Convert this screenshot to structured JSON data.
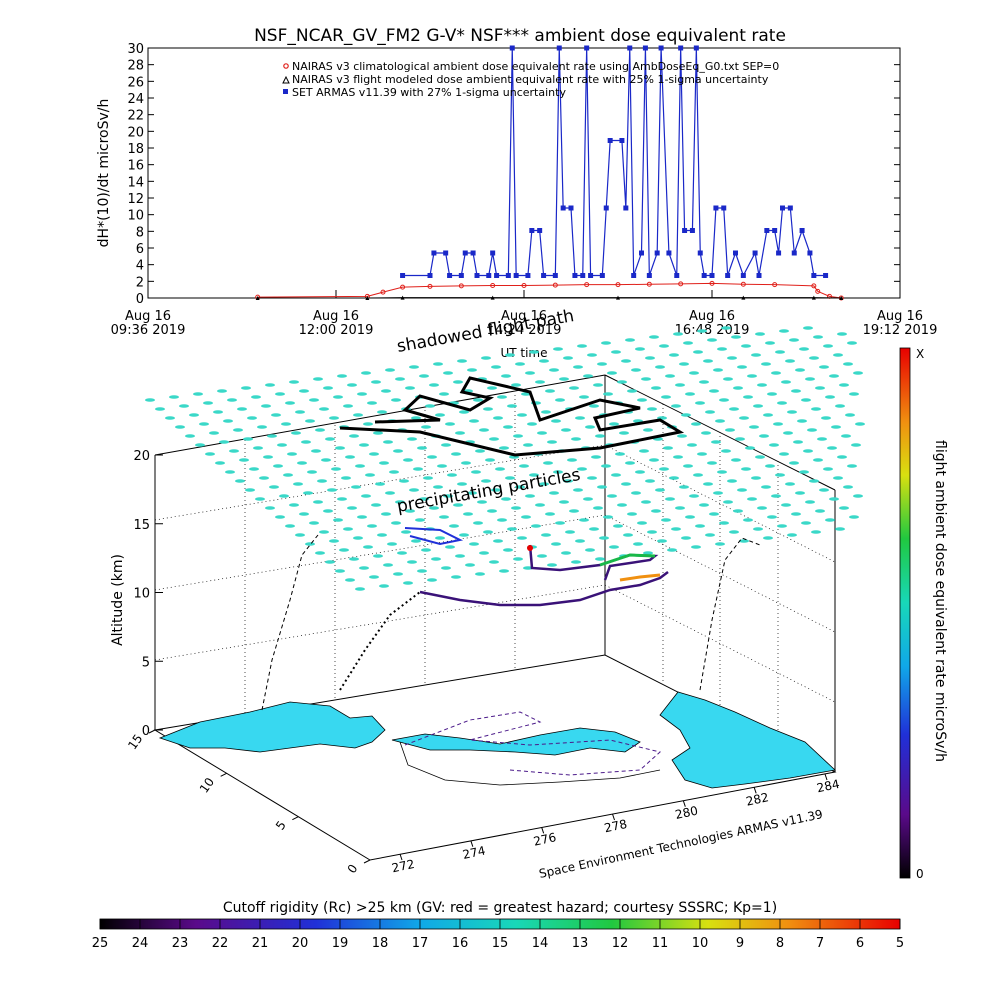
{
  "chart_data": [
    {
      "type": "line",
      "title": "NSF_NCAR_GV_FM2 G-V* NSF*** ambient dose equivalent rate",
      "ylabel": "dH*(10)/dt microSv/h",
      "xlabel": "UT time",
      "ylim": [
        0,
        30
      ],
      "yticks": [
        0,
        2,
        4,
        6,
        8,
        10,
        12,
        14,
        16,
        18,
        20,
        22,
        24,
        26,
        28,
        30
      ],
      "x_tick_labels": [
        {
          "l1": "Aug 16",
          "l2": "09:36 2019"
        },
        {
          "l1": "Aug 16",
          "l2": "12:00 2019"
        },
        {
          "l1": "Aug 16",
          "l2": "14:24 2019"
        },
        {
          "l1": "Aug 16",
          "l2": "16:48 2019"
        },
        {
          "l1": "Aug 16",
          "l2": "19:12 2019"
        }
      ],
      "x_hours_range": [
        9.6,
        19.2
      ],
      "legend_position": "top-right",
      "series": [
        {
          "name": "NAIRAS v3 climatological ambient dose equivalent rate using AmbDoseEq_G0.txt SEP=0",
          "color": "#e0201a",
          "marker": "circle",
          "points": [
            [
              11.0,
              0.1
            ],
            [
              12.4,
              0.2
            ],
            [
              12.6,
              0.7
            ],
            [
              12.85,
              1.3
            ],
            [
              13.2,
              1.4
            ],
            [
              13.6,
              1.45
            ],
            [
              14.0,
              1.5
            ],
            [
              14.4,
              1.5
            ],
            [
              14.8,
              1.55
            ],
            [
              15.2,
              1.6
            ],
            [
              15.6,
              1.6
            ],
            [
              16.0,
              1.65
            ],
            [
              16.4,
              1.7
            ],
            [
              16.8,
              1.75
            ],
            [
              17.2,
              1.65
            ],
            [
              17.6,
              1.6
            ],
            [
              18.1,
              1.45
            ],
            [
              18.15,
              0.8
            ],
            [
              18.3,
              0.2
            ],
            [
              18.45,
              0.0
            ]
          ]
        },
        {
          "name": "NAIRAS v3 flight modeled dose ambient equivalent rate with 25% 1-sigma uncertainty",
          "color": "#000000",
          "marker": "triangle",
          "points": [
            [
              11.0,
              0.0
            ],
            [
              12.4,
              0.0
            ],
            [
              12.85,
              0.05
            ],
            [
              14.0,
              0.05
            ],
            [
              15.6,
              0.05
            ],
            [
              17.2,
              0.05
            ],
            [
              18.1,
              0.05
            ],
            [
              18.45,
              0.0
            ]
          ]
        },
        {
          "name": "SET ARMAS v11.39 with 27% 1-sigma uncertainty",
          "color": "#1a28c8",
          "marker": "square",
          "points": [
            [
              12.85,
              2.7
            ],
            [
              13.2,
              2.7
            ],
            [
              13.25,
              5.4
            ],
            [
              13.4,
              5.4
            ],
            [
              13.45,
              2.7
            ],
            [
              13.6,
              2.7
            ],
            [
              13.65,
              5.4
            ],
            [
              13.75,
              5.4
            ],
            [
              13.8,
              2.7
            ],
            [
              13.95,
              2.7
            ],
            [
              14.0,
              5.4
            ],
            [
              14.05,
              2.7
            ],
            [
              14.2,
              2.7
            ],
            [
              14.25,
              30
            ],
            [
              14.3,
              2.7
            ],
            [
              14.45,
              2.7
            ],
            [
              14.5,
              8.1
            ],
            [
              14.6,
              8.1
            ],
            [
              14.65,
              2.7
            ],
            [
              14.8,
              2.7
            ],
            [
              14.85,
              30
            ],
            [
              14.9,
              10.8
            ],
            [
              15.0,
              10.8
            ],
            [
              15.05,
              2.7
            ],
            [
              15.15,
              2.7
            ],
            [
              15.2,
              30
            ],
            [
              15.25,
              2.7
            ],
            [
              15.4,
              2.7
            ],
            [
              15.45,
              10.8
            ],
            [
              15.5,
              18.9
            ],
            [
              15.65,
              18.9
            ],
            [
              15.7,
              10.8
            ],
            [
              15.75,
              30
            ],
            [
              15.8,
              2.7
            ],
            [
              15.9,
              5.4
            ],
            [
              15.95,
              30
            ],
            [
              16.0,
              2.7
            ],
            [
              16.1,
              5.4
            ],
            [
              16.15,
              30
            ],
            [
              16.25,
              5.4
            ],
            [
              16.35,
              2.7
            ],
            [
              16.4,
              30
            ],
            [
              16.45,
              8.1
            ],
            [
              16.55,
              8.1
            ],
            [
              16.6,
              30
            ],
            [
              16.65,
              5.4
            ],
            [
              16.7,
              2.7
            ],
            [
              16.8,
              2.7
            ],
            [
              16.85,
              10.8
            ],
            [
              16.95,
              10.8
            ],
            [
              17.0,
              2.7
            ],
            [
              17.1,
              5.4
            ],
            [
              17.2,
              2.7
            ],
            [
              17.35,
              5.4
            ],
            [
              17.4,
              2.7
            ],
            [
              17.5,
              8.1
            ],
            [
              17.6,
              8.1
            ],
            [
              17.65,
              5.4
            ],
            [
              17.7,
              10.8
            ],
            [
              17.8,
              10.8
            ],
            [
              17.85,
              5.4
            ],
            [
              17.95,
              8.1
            ],
            [
              18.05,
              5.4
            ],
            [
              18.1,
              2.7
            ],
            [
              18.25,
              2.7
            ]
          ]
        }
      ]
    },
    {
      "type": "scatter",
      "title": "",
      "zlabel": "Altitude (km)",
      "zticks": [
        0,
        5,
        10,
        15,
        20
      ],
      "lat_ticks": [
        0,
        5,
        10,
        15
      ],
      "lon_ticks": [
        272,
        274,
        276,
        278,
        280,
        282,
        284
      ],
      "annotations": [
        "shadowed flight path",
        "precipitating particles"
      ],
      "credit": "Space Environment Technologies ARMAS v11.39",
      "colorbar": {
        "label": "flight ambient dose equivalent rate microSv/h",
        "top_label": "X",
        "bottom_label": "0"
      }
    },
    {
      "type": "heatmap",
      "title": "Cutoff rigidity (Rc) >25 km (GV: red = greatest hazard; courtesy SSSRC; Kp=1)",
      "colorbar_labels": [
        "25",
        "24",
        "23",
        "22",
        "21",
        "20",
        "19",
        "18",
        "17",
        "16",
        "15",
        "14",
        "13",
        "12",
        "11",
        "10",
        "9",
        "8",
        "7",
        "6",
        "5"
      ]
    }
  ]
}
